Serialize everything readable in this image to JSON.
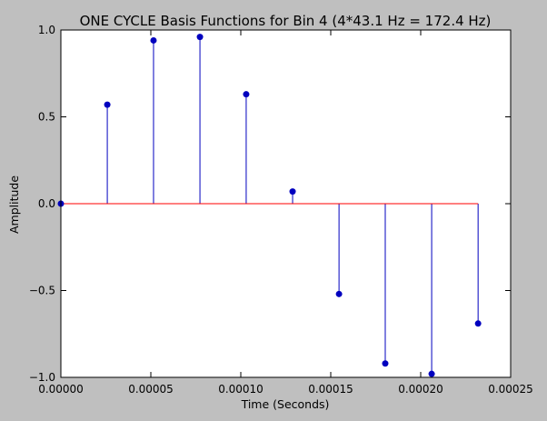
{
  "chart_data": {
    "type": "stem",
    "title": "ONE CYCLE Basis Functions for Bin 4 (4*43.1 Hz = 172.4 Hz)",
    "xlabel": "Time (Seconds)",
    "ylabel": "Amplitude",
    "xlim": [
      0,
      0.00025
    ],
    "ylim": [
      -1.0,
      1.0
    ],
    "xticks": [
      0,
      5e-05,
      0.0001,
      0.00015,
      0.0002,
      0.00025
    ],
    "xtick_labels": [
      "0.00000",
      "0.00005",
      "0.00010",
      "0.00015",
      "0.00020",
      "0.00025"
    ],
    "yticks": [
      -1.0,
      -0.5,
      0.0,
      0.5,
      1.0
    ],
    "ytick_labels": [
      "−1.0",
      "−0.5",
      "0.0",
      "0.5",
      "1.0"
    ],
    "grid": false,
    "baseline": 0,
    "x": [
      0,
      2.58e-05,
      5.15e-05,
      7.73e-05,
      0.000103,
      0.0001288,
      0.0001546,
      0.0001803,
      0.0002061,
      0.0002319
    ],
    "y": [
      0.0,
      0.57,
      0.94,
      0.96,
      0.63,
      0.07,
      -0.52,
      -0.92,
      -0.98,
      -0.69
    ],
    "colors": {
      "stem": "#0000bf",
      "marker": "#0000bf",
      "baseline": "#ff0000",
      "axes_bg": "#ffffff",
      "figure_bg": "#bfbfbf"
    }
  }
}
